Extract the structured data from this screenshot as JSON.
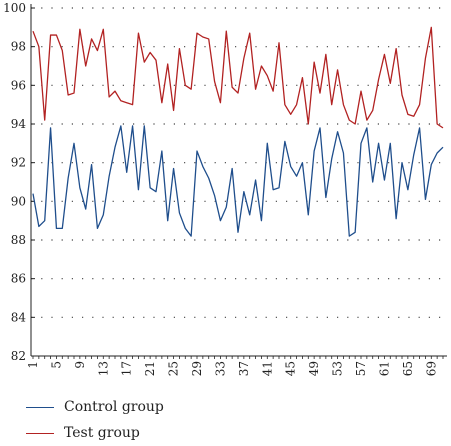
{
  "chart_data": {
    "type": "line",
    "x": [
      1,
      2,
      3,
      4,
      5,
      6,
      7,
      8,
      9,
      10,
      11,
      12,
      13,
      14,
      15,
      16,
      17,
      18,
      19,
      20,
      21,
      22,
      23,
      24,
      25,
      26,
      27,
      28,
      29,
      30,
      31,
      32,
      33,
      34,
      35,
      36,
      37,
      38,
      39,
      40,
      41,
      42,
      43,
      44,
      45,
      46,
      47,
      48,
      49,
      50,
      51,
      52,
      53,
      54,
      55,
      56,
      57,
      58,
      59,
      60,
      61,
      62,
      63,
      64,
      65,
      66,
      67,
      68,
      69,
      70,
      71
    ],
    "x_ticks": [
      1,
      5,
      9,
      13,
      17,
      21,
      25,
      29,
      33,
      37,
      41,
      45,
      49,
      53,
      57,
      61,
      65,
      69
    ],
    "y_ticks": [
      82,
      84,
      86,
      88,
      90,
      92,
      94,
      96,
      98,
      100
    ],
    "ylim": [
      82,
      100
    ],
    "xlim": [
      1,
      71
    ],
    "grid": "dotted horizontal",
    "legend_position": "bottom-left",
    "series": [
      {
        "name": "Control group",
        "color": "#1f4e8c",
        "values": [
          90.4,
          88.7,
          89.0,
          93.8,
          88.6,
          88.6,
          91.2,
          93.0,
          90.7,
          89.6,
          91.9,
          88.6,
          89.3,
          91.3,
          92.8,
          93.9,
          91.5,
          93.9,
          90.6,
          93.9,
          90.7,
          90.5,
          92.6,
          89.0,
          91.7,
          89.4,
          88.6,
          88.2,
          92.6,
          91.8,
          91.2,
          90.3,
          89.0,
          89.7,
          91.7,
          88.4,
          90.5,
          89.3,
          91.1,
          89.0,
          93.0,
          90.6,
          90.7,
          93.1,
          91.8,
          91.3,
          92.0,
          89.3,
          92.6,
          93.8,
          90.2,
          92.2,
          93.6,
          92.5,
          88.2,
          88.4,
          93.0,
          93.8,
          91.0,
          93.0,
          91.1,
          93.0,
          89.1,
          92.0,
          90.6,
          92.4,
          93.8,
          90.1,
          91.9,
          92.5,
          92.8
        ]
      },
      {
        "name": "Test group",
        "color": "#b22222",
        "values": [
          98.8,
          98.0,
          94.2,
          98.6,
          98.6,
          97.8,
          95.5,
          95.6,
          98.9,
          97.0,
          98.4,
          97.8,
          98.9,
          95.4,
          95.7,
          95.2,
          95.1,
          95.0,
          98.7,
          97.2,
          97.7,
          97.3,
          95.1,
          97.1,
          94.7,
          97.9,
          96.0,
          95.8,
          98.7,
          98.5,
          98.4,
          96.2,
          95.1,
          98.8,
          95.9,
          95.6,
          97.4,
          98.7,
          95.8,
          97.0,
          96.5,
          95.7,
          98.2,
          95.0,
          94.5,
          95.0,
          96.4,
          94.0,
          97.2,
          95.6,
          97.6,
          95.0,
          96.8,
          95.0,
          94.2,
          94.0,
          95.7,
          94.2,
          94.7,
          96.3,
          97.6,
          96.1,
          97.9,
          95.5,
          94.5,
          94.4,
          95.0,
          97.4,
          99.0,
          94.0,
          93.8
        ]
      }
    ]
  }
}
